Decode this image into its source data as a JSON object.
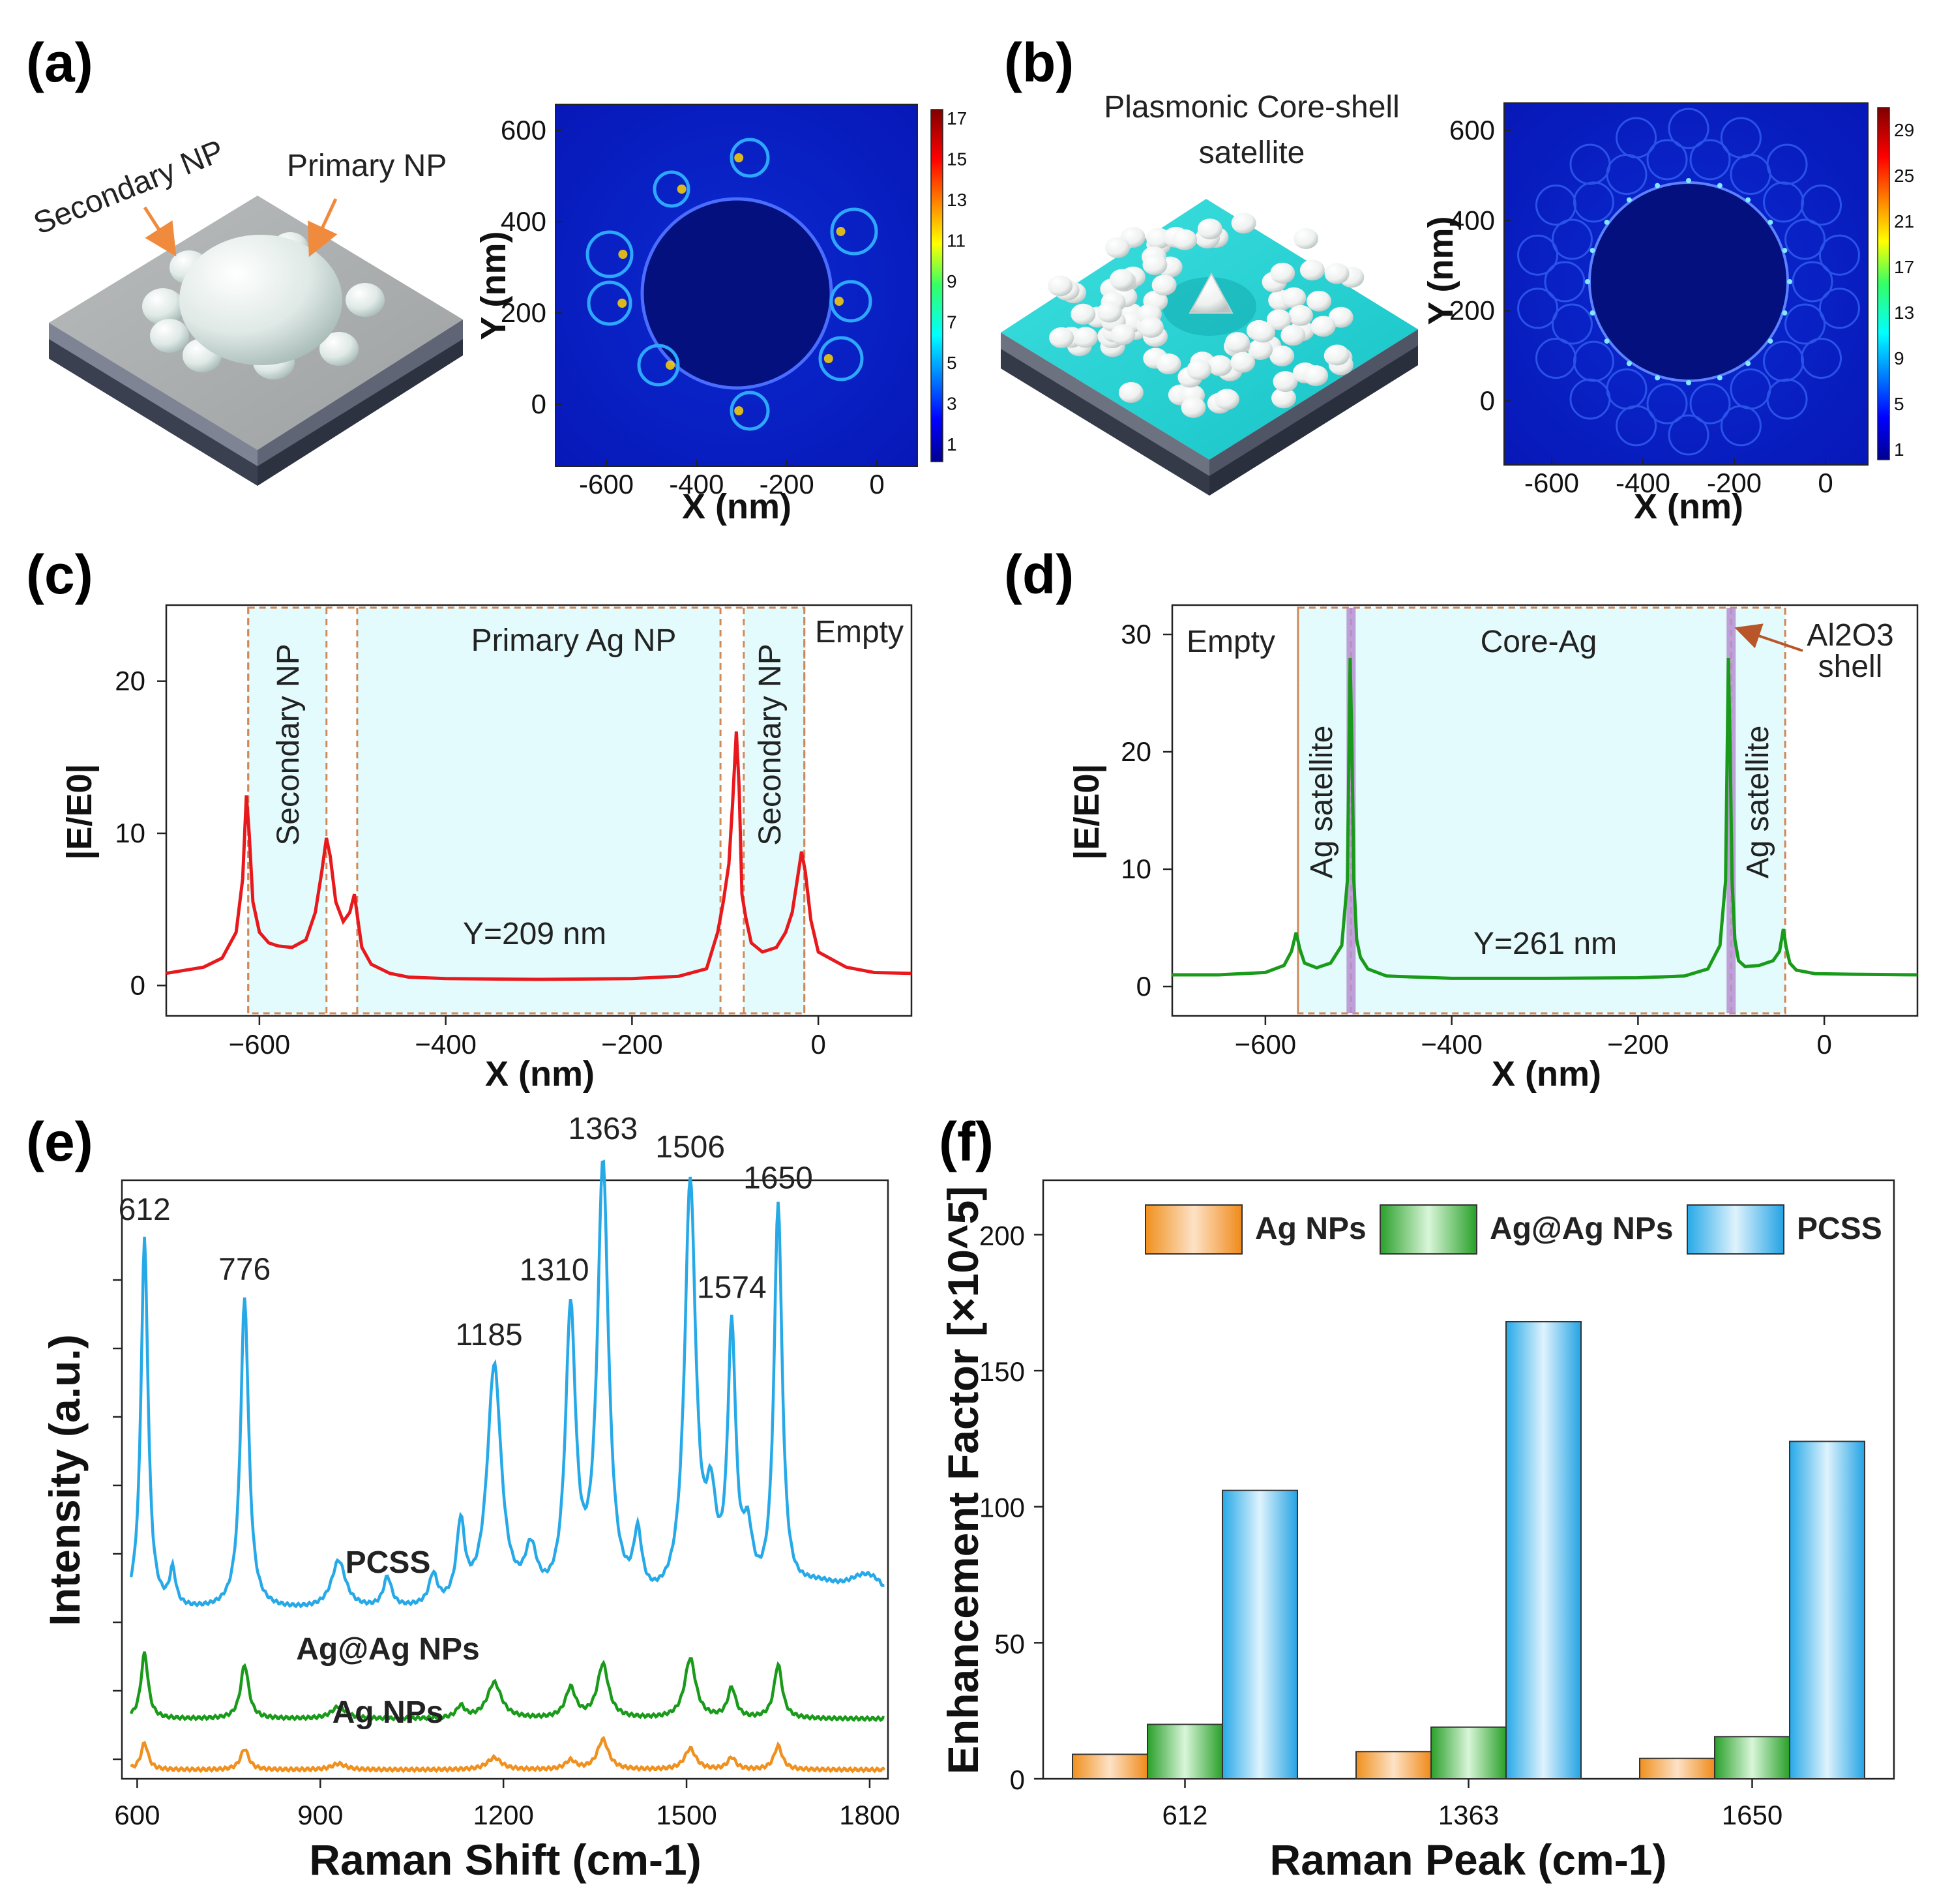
{
  "panels": {
    "a": {
      "label": "(a)",
      "secondary_label": "Secondary NP",
      "primary_label": "Primary NP"
    },
    "b": {
      "label": "(b)",
      "title_line1": "Plasmonic Core-shell",
      "title_line2": "satellite"
    },
    "c": {
      "label": "(c)"
    },
    "d": {
      "label": "(d)"
    },
    "e": {
      "label": "(e)"
    },
    "f": {
      "label": "(f)"
    }
  },
  "maps": {
    "a": {
      "xlabel": "X (nm)",
      "ylabel": "Y (nm)",
      "xticks": [
        "-600",
        "-400",
        "-200",
        "0"
      ],
      "yticks": [
        "600",
        "400",
        "200",
        "0"
      ],
      "colorbar_ticks": [
        "17",
        "15",
        "13",
        "11",
        "9",
        "7",
        "5",
        "3",
        "1"
      ]
    },
    "b": {
      "xlabel": "X (nm)",
      "ylabel": "Y (nm)",
      "xticks": [
        "-600",
        "-400",
        "-200",
        "0"
      ],
      "yticks": [
        "600",
        "400",
        "200",
        "0"
      ],
      "colorbar_ticks": [
        "29",
        "25",
        "21",
        "17",
        "13",
        "9",
        "5",
        "1"
      ]
    }
  },
  "colors": {
    "red": "#e8191d",
    "green": "#1a9a1a",
    "blue": "#27a9e8",
    "orange": "#f0901e",
    "cyan_fill": "#e3fbfc",
    "dash": "#d08a5a",
    "purple": "#b58fd0"
  },
  "chart_data": [
    {
      "id": "c",
      "type": "line",
      "xlabel": "X (nm)",
      "ylabel": "|E/E0|",
      "xlim": [
        -700,
        100
      ],
      "ylim": [
        -2,
        25
      ],
      "xticks": [
        -600,
        -400,
        -200,
        0
      ],
      "yticks": [
        0,
        10,
        20
      ],
      "region_labels": {
        "secondary": "Secondary NP",
        "primary": "Primary Ag NP",
        "empty": "Empty",
        "y_note": "Y=209 nm"
      },
      "regions": [
        [
          -612,
          -528
        ],
        [
          -495,
          -105
        ],
        [
          -80,
          -15
        ]
      ],
      "x": [
        -700,
        -660,
        -640,
        -625,
        -618,
        -614,
        -611,
        -607,
        -600,
        -590,
        -580,
        -565,
        -550,
        -540,
        -533,
        -528,
        -524,
        -518,
        -510,
        -503,
        -498,
        -494,
        -490,
        -480,
        -460,
        -440,
        -400,
        -300,
        -200,
        -150,
        -120,
        -108,
        -102,
        -96,
        -92,
        -88,
        -85,
        -82,
        -78,
        -72,
        -60,
        -45,
        -35,
        -28,
        -23,
        -18,
        -14,
        -8,
        0,
        30,
        60,
        100
      ],
      "y": [
        0.8,
        1.2,
        1.8,
        3.5,
        7,
        12.5,
        10,
        5.5,
        3.5,
        2.8,
        2.6,
        2.5,
        3,
        4.8,
        7.5,
        9.7,
        8.5,
        5.5,
        4.2,
        4.8,
        6,
        4.2,
        2.5,
        1.4,
        0.8,
        0.55,
        0.45,
        0.4,
        0.45,
        0.6,
        1.1,
        3.5,
        5.5,
        8,
        12,
        16.7,
        13,
        6,
        4.5,
        2.8,
        2.2,
        2.5,
        3.5,
        4.8,
        6.8,
        8.8,
        7.5,
        4.3,
        2.2,
        1.2,
        0.85,
        0.8
      ]
    },
    {
      "id": "d",
      "type": "line",
      "xlabel": "X (nm)",
      "ylabel": "|E/E0|",
      "xlim": [
        -700,
        100
      ],
      "ylim": [
        -2.5,
        32.5
      ],
      "xticks": [
        -600,
        -400,
        -200,
        0
      ],
      "yticks": [
        0,
        10,
        20,
        30
      ],
      "region_labels": {
        "empty": "Empty",
        "core": "Core-Ag",
        "satellite": "Ag satellite",
        "shell_line1": "Al2O3",
        "shell_line2": "shell",
        "y_note": "Y=261 nm"
      },
      "regions": [
        [
          -565,
          -508
        ],
        [
          -508,
          -100
        ],
        [
          -100,
          -42
        ]
      ],
      "x": [
        -700,
        -650,
        -600,
        -580,
        -572,
        -567,
        -563,
        -558,
        -545,
        -530,
        -518,
        -512,
        -509,
        -507,
        -505,
        -502,
        -498,
        -490,
        -470,
        -400,
        -300,
        -200,
        -150,
        -125,
        -112,
        -106,
        -103,
        -101,
        -99,
        -96,
        -92,
        -85,
        -70,
        -55,
        -48,
        -44,
        -41,
        -37,
        -30,
        -10,
        30,
        100
      ],
      "y": [
        1,
        1,
        1.2,
        1.8,
        3,
        4.6,
        3.2,
        2,
        1.6,
        2,
        3.5,
        9,
        28,
        20,
        9,
        4,
        2.5,
        1.5,
        0.9,
        0.7,
        0.7,
        0.75,
        0.9,
        1.5,
        3.5,
        9,
        28,
        20,
        9,
        4,
        2.2,
        1.7,
        1.8,
        2.2,
        3,
        4.9,
        3.4,
        2,
        1.4,
        1.1,
        1.05,
        1
      ]
    },
    {
      "id": "e",
      "type": "line",
      "xlabel": "Raman Shift (cm-1)",
      "ylabel": "Intensity (a.u.)",
      "xlim": [
        575,
        1830
      ],
      "ylim": [
        0,
        100
      ],
      "xticks": [
        600,
        900,
        1200,
        1500,
        1800
      ],
      "peak_labels": [
        "612",
        "776",
        "1185",
        "1310",
        "1363",
        "1506",
        "1574",
        "1650"
      ],
      "peak_positions": [
        612,
        776,
        1185,
        1310,
        1363,
        1506,
        1574,
        1650
      ],
      "series": [
        {
          "name": "PCSS",
          "color": "#27a9e8",
          "offset": 28,
          "peaks": [
            [
              612,
              62,
              7
            ],
            [
              658,
              6,
              6
            ],
            [
              776,
              52,
              8
            ],
            [
              930,
              8,
              14
            ],
            [
              1010,
              5,
              8
            ],
            [
              1085,
              5,
              8
            ],
            [
              1130,
              13,
              8
            ],
            [
              1185,
              40,
              14
            ],
            [
              1245,
              8,
              12
            ],
            [
              1310,
              48,
              10
            ],
            [
              1363,
              73,
              11
            ],
            [
              1420,
              10,
              8
            ],
            [
              1506,
              70,
              11
            ],
            [
              1540,
              14,
              10
            ],
            [
              1574,
              44,
              8
            ],
            [
              1600,
              10,
              10
            ],
            [
              1650,
              66,
              8
            ]
          ],
          "tail": [
            [
              1720,
              4,
              60
            ],
            [
              1800,
              5,
              40
            ]
          ]
        },
        {
          "name": "Ag@Ag NPs",
          "color": "#1a9a1a",
          "offset": 10,
          "peaks": [
            [
              612,
              11,
              7
            ],
            [
              776,
              9,
              8
            ],
            [
              930,
              2,
              14
            ],
            [
              1130,
              2,
              8
            ],
            [
              1185,
              6,
              14
            ],
            [
              1310,
              5,
              10
            ],
            [
              1363,
              9,
              11
            ],
            [
              1506,
              10,
              11
            ],
            [
              1574,
              5,
              8
            ],
            [
              1650,
              9,
              8
            ]
          ]
        },
        {
          "name": "Ag NPs",
          "color": "#f0901e",
          "offset": 1.5,
          "peaks": [
            [
              612,
              4.5,
              7
            ],
            [
              776,
              3.5,
              8
            ],
            [
              930,
              1,
              14
            ],
            [
              1185,
              2,
              14
            ],
            [
              1310,
              1.5,
              10
            ],
            [
              1363,
              5,
              11
            ],
            [
              1506,
              3.5,
              11
            ],
            [
              1574,
              2,
              8
            ],
            [
              1650,
              4,
              8
            ]
          ]
        }
      ]
    },
    {
      "id": "f",
      "type": "bar",
      "xlabel": "Raman Peak (cm-1)",
      "ylabel": "Enhancement Factor [×10^5]",
      "categories": [
        "612",
        "1363",
        "1650"
      ],
      "ylim": [
        0,
        220
      ],
      "yticks": [
        0,
        50,
        100,
        150,
        200
      ],
      "series": [
        {
          "name": "Ag NPs",
          "values": [
            9,
            10,
            7.5
          ],
          "color": "#f0901e"
        },
        {
          "name": "Ag@Ag NPs",
          "values": [
            20,
            19,
            15.5
          ],
          "color": "#1a9a1a"
        },
        {
          "name": "PCSS",
          "values": [
            106,
            168,
            124
          ],
          "color": "#27a9e8"
        }
      ]
    }
  ],
  "axis_text": {
    "e_series_labels": [
      "PCSS",
      "Ag@Ag NPs",
      "Ag NPs"
    ],
    "f_legend": [
      "Ag NPs",
      "Ag@Ag NPs",
      "PCSS"
    ]
  }
}
